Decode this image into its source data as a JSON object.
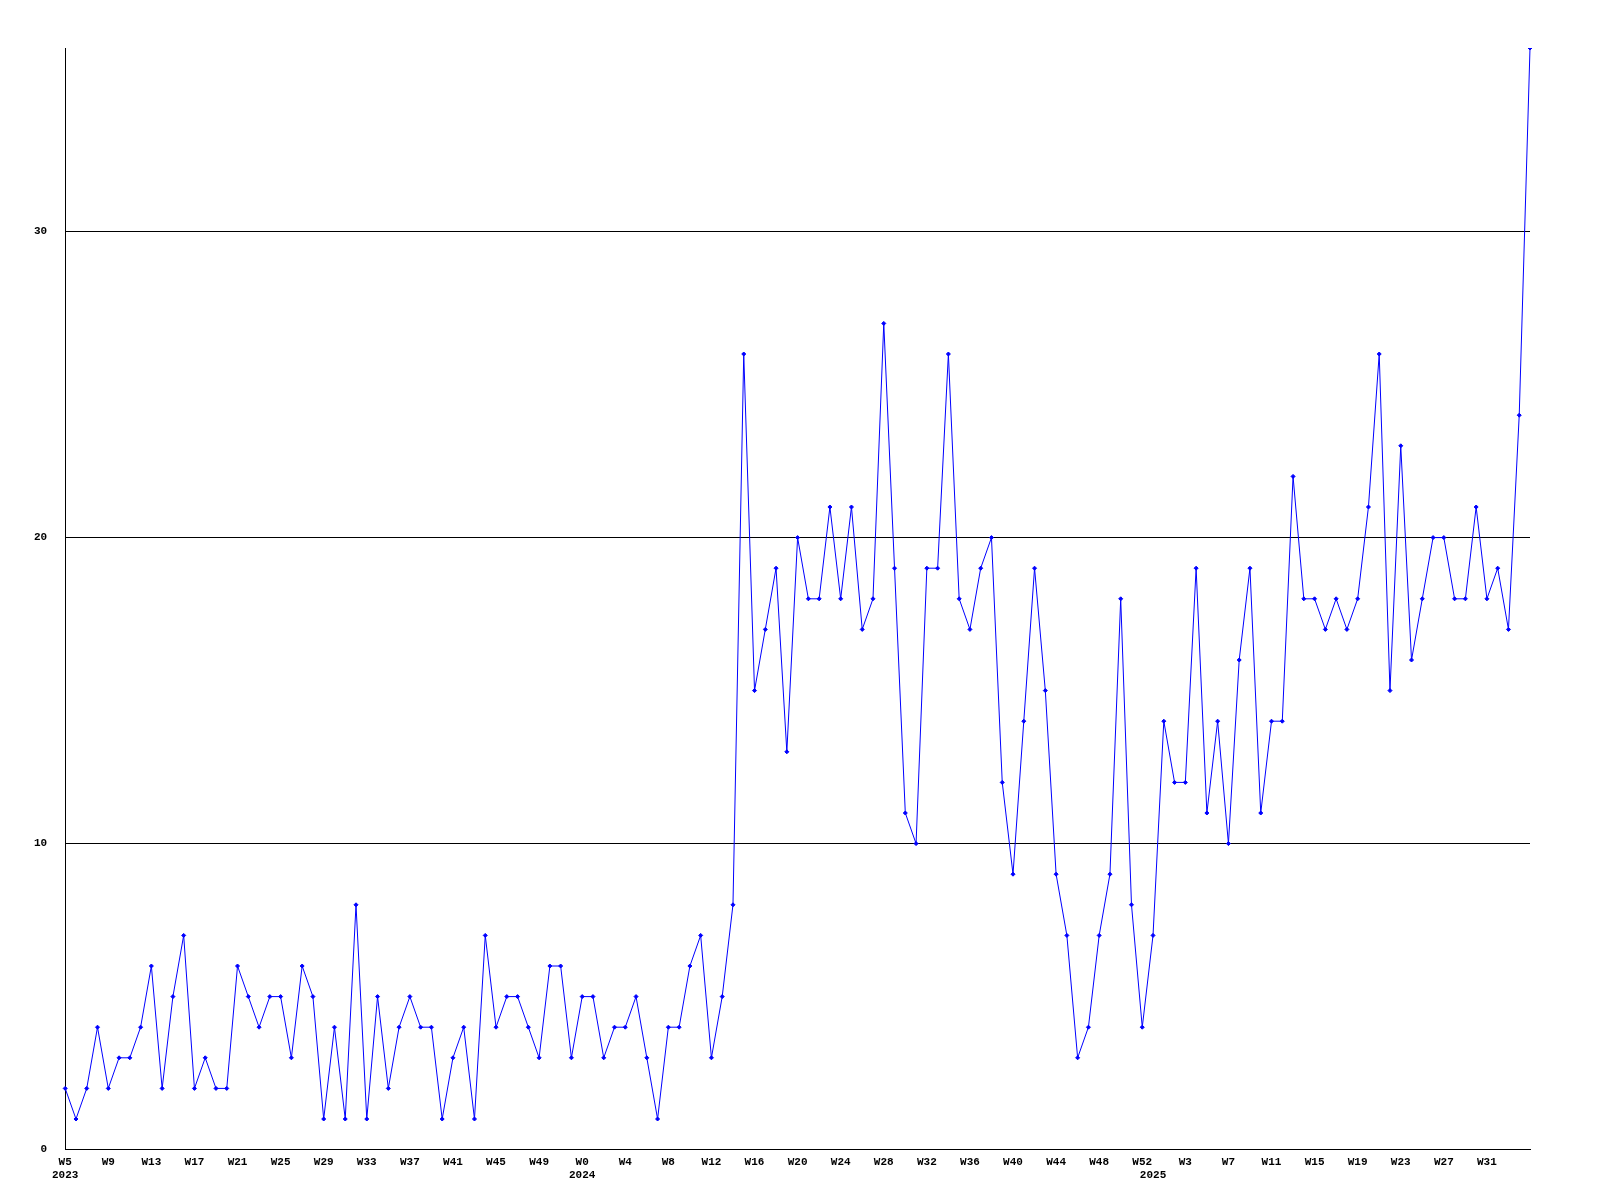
{
  "chart_data": {
    "type": "line",
    "categories": [
      "W5\n2023",
      null,
      null,
      null,
      "W9",
      null,
      null,
      null,
      "W13",
      null,
      null,
      null,
      "W17",
      null,
      null,
      null,
      "W21",
      null,
      null,
      null,
      "W25",
      null,
      null,
      null,
      "W29",
      null,
      null,
      null,
      "W33",
      null,
      null,
      null,
      "W37",
      null,
      null,
      null,
      "W41",
      null,
      null,
      null,
      "W45",
      null,
      null,
      null,
      "W49",
      null,
      null,
      null,
      "W0\n2024",
      null,
      null,
      null,
      "W4",
      null,
      null,
      null,
      "W8",
      null,
      null,
      null,
      "W12",
      null,
      null,
      null,
      "W16",
      null,
      null,
      null,
      "W20",
      null,
      null,
      null,
      "W24",
      null,
      null,
      null,
      "W28",
      null,
      null,
      null,
      "W32",
      null,
      null,
      null,
      "W36",
      null,
      null,
      null,
      "W40",
      null,
      null,
      null,
      "W44",
      null,
      null,
      null,
      "W48",
      null,
      null,
      null,
      "W52",
      "\n2025",
      null,
      null,
      "W3",
      null,
      null,
      null,
      "W7",
      null,
      null,
      null,
      "W11",
      null,
      null,
      null,
      "W15",
      null,
      null,
      null,
      "W19",
      null,
      null,
      null,
      "W23",
      null,
      null,
      null,
      "W27",
      null,
      null,
      null,
      "W31",
      null,
      null,
      null,
      null
    ],
    "series": [
      {
        "color": "#0000ff",
        "values": [
          2,
          1,
          2,
          4,
          2,
          3,
          3,
          4,
          6,
          2,
          5,
          7,
          2,
          3,
          2,
          2,
          6,
          5,
          4,
          5,
          5,
          3,
          6,
          5,
          1,
          4,
          1,
          8,
          1,
          5,
          2,
          4,
          5,
          4,
          4,
          1,
          3,
          4,
          1,
          7,
          4,
          5,
          5,
          4,
          3,
          6,
          6,
          3,
          5,
          5,
          3,
          4,
          4,
          5,
          3,
          1,
          4,
          4,
          6,
          7,
          3,
          5,
          8,
          26,
          15,
          17,
          19,
          13,
          20,
          18,
          18,
          21,
          18,
          21,
          17,
          18,
          27,
          19,
          11,
          10,
          19,
          19,
          26,
          18,
          17,
          19,
          20,
          12,
          9,
          14,
          19,
          15,
          9,
          7,
          3,
          4,
          7,
          9,
          18,
          8,
          4,
          7,
          14,
          12,
          12,
          19,
          11,
          14,
          10,
          16,
          19,
          11,
          14,
          14,
          22,
          18,
          18,
          17,
          18,
          17,
          18,
          21,
          26,
          15,
          23,
          16,
          18,
          20,
          20,
          18,
          18,
          21,
          18,
          19,
          17,
          24,
          36
        ]
      }
    ],
    "ylim": [
      0,
      36
    ],
    "yticks": [
      0,
      10,
      20,
      30
    ],
    "grid": "y",
    "legend": false,
    "marker": "diamond",
    "line_style": "solid"
  }
}
